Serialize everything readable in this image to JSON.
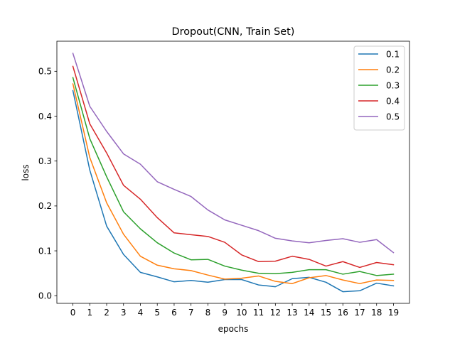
{
  "chart_data": {
    "type": "line",
    "title": "Dropout(CNN, Train Set)",
    "xlabel": "epochs",
    "ylabel": "loss",
    "x": [
      0,
      1,
      2,
      3,
      4,
      5,
      6,
      7,
      8,
      9,
      10,
      11,
      12,
      13,
      14,
      15,
      16,
      17,
      18,
      19
    ],
    "xticks": [
      "0",
      "1",
      "2",
      "3",
      "4",
      "5",
      "6",
      "7",
      "8",
      "9",
      "10",
      "11",
      "12",
      "13",
      "14",
      "15",
      "16",
      "17",
      "18",
      "19"
    ],
    "yticks": [
      "0.0",
      "0.1",
      "0.2",
      "0.3",
      "0.4",
      "0.5"
    ],
    "ytick_values": [
      0.0,
      0.1,
      0.2,
      0.3,
      0.4,
      0.5
    ],
    "xlim": [
      -0.95,
      19.95
    ],
    "ylim": [
      -0.017,
      0.567
    ],
    "grid": false,
    "legend_position": "top-right",
    "series": [
      {
        "name": "0.1",
        "color": "#1f77b4",
        "values": [
          0.457,
          0.28,
          0.155,
          0.092,
          0.052,
          0.042,
          0.031,
          0.034,
          0.03,
          0.036,
          0.036,
          0.024,
          0.02,
          0.038,
          0.041,
          0.03,
          0.009,
          0.011,
          0.028,
          0.022
        ]
      },
      {
        "name": "0.2",
        "color": "#ff7f0e",
        "values": [
          0.472,
          0.308,
          0.207,
          0.137,
          0.088,
          0.068,
          0.06,
          0.056,
          0.046,
          0.037,
          0.039,
          0.044,
          0.032,
          0.027,
          0.04,
          0.045,
          0.035,
          0.027,
          0.035,
          0.034
        ]
      },
      {
        "name": "0.3",
        "color": "#2ca02c",
        "values": [
          0.486,
          0.35,
          0.265,
          0.187,
          0.149,
          0.118,
          0.095,
          0.08,
          0.081,
          0.066,
          0.057,
          0.05,
          0.049,
          0.052,
          0.058,
          0.058,
          0.048,
          0.054,
          0.045,
          0.048
        ]
      },
      {
        "name": "0.4",
        "color": "#d62728",
        "values": [
          0.511,
          0.383,
          0.318,
          0.246,
          0.215,
          0.174,
          0.14,
          0.136,
          0.132,
          0.119,
          0.091,
          0.076,
          0.077,
          0.088,
          0.081,
          0.066,
          0.076,
          0.063,
          0.074,
          0.069
        ]
      },
      {
        "name": "0.5",
        "color": "#9467bd",
        "values": [
          0.54,
          0.422,
          0.366,
          0.316,
          0.293,
          0.254,
          0.237,
          0.221,
          0.191,
          0.169,
          0.157,
          0.145,
          0.128,
          0.122,
          0.118,
          0.123,
          0.127,
          0.119,
          0.125,
          0.096
        ]
      }
    ]
  }
}
